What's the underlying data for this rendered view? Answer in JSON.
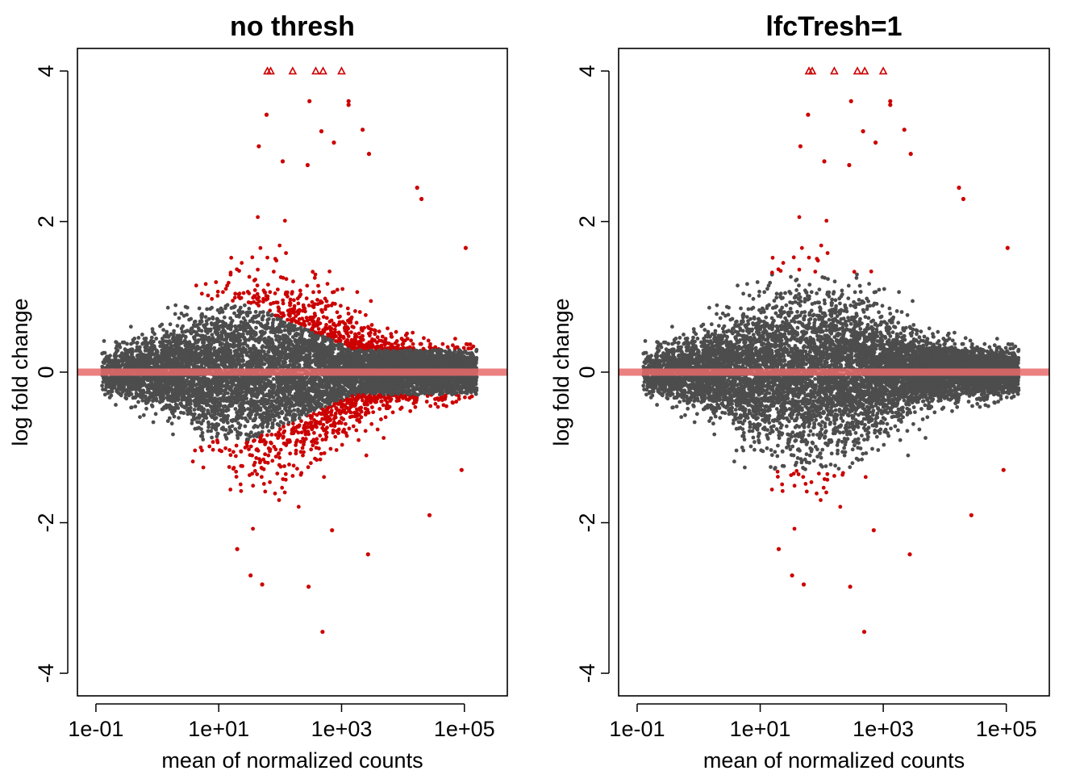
{
  "chart_data": [
    {
      "type": "scatter",
      "title": "no thresh",
      "xlabel": "mean of normalized counts",
      "ylabel": "log fold change",
      "x_scale": "log10",
      "xlim": [
        0.05,
        500000
      ],
      "ylim": [
        -4.3,
        4.3
      ],
      "x_ticks": [
        "1e-01",
        "1e+01",
        "1e+03",
        "1e+05"
      ],
      "y_ticks": [
        "-4",
        "-2",
        "0",
        "2",
        "4"
      ],
      "grid": false,
      "legend": "none",
      "colors": {
        "significant": "#cc0000",
        "not_significant": "#4d4d4d",
        "zero_line": "#e86a6a"
      },
      "series": [
        {
          "values_shape": "cloud of gray points, spread narrowing at low and high counts"
        },
        {
          "values_shape": "red points beyond about |0.9| log fold change at low counts, about |0.3| at high counts"
        }
      ],
      "clipped_points": [
        {
          "x": 62,
          "y": 4
        },
        {
          "x": 70,
          "y": 4
        },
        {
          "x": 160,
          "y": 4
        },
        {
          "x": 380,
          "y": 4
        },
        {
          "x": 500,
          "y": 4
        },
        {
          "x": 1000,
          "y": 4
        }
      ],
      "highlighted_points": [
        {
          "x": 1300,
          "y": 3.6
        },
        {
          "x": 1300,
          "y": 3.55
        },
        {
          "x": 300,
          "y": 3.6
        },
        {
          "x": 60,
          "y": 3.42
        },
        {
          "x": 470,
          "y": 3.2
        },
        {
          "x": 2200,
          "y": 3.22
        },
        {
          "x": 45,
          "y": 3.0
        },
        {
          "x": 750,
          "y": 3.05
        },
        {
          "x": 2800,
          "y": 2.9
        },
        {
          "x": 110,
          "y": 2.8
        },
        {
          "x": 280,
          "y": 2.75
        },
        {
          "x": 17000,
          "y": 2.45
        },
        {
          "x": 20000,
          "y": 2.3
        },
        {
          "x": 105000,
          "y": 1.65
        },
        {
          "x": 90000,
          "y": -1.3
        },
        {
          "x": 27000,
          "y": -1.9
        },
        {
          "x": 2700,
          "y": -2.42
        },
        {
          "x": 700,
          "y": -2.1
        },
        {
          "x": 490,
          "y": -3.45
        },
        {
          "x": 290,
          "y": -2.85
        },
        {
          "x": 51,
          "y": -2.82
        },
        {
          "x": 33,
          "y": -2.7
        },
        {
          "x": 20,
          "y": -2.35
        }
      ]
    },
    {
      "type": "scatter",
      "title": "lfcTresh=1",
      "xlabel": "mean of normalized counts",
      "ylabel": "log fold change",
      "x_scale": "log10",
      "xlim": [
        0.05,
        500000
      ],
      "ylim": [
        -4.3,
        4.3
      ],
      "x_ticks": [
        "1e-01",
        "1e+01",
        "1e+03",
        "1e+05"
      ],
      "y_ticks": [
        "-4",
        "-2",
        "0",
        "2",
        "4"
      ],
      "grid": false,
      "legend": "none",
      "colors": {
        "significant": "#cc0000",
        "not_significant": "#4d4d4d",
        "zero_line": "#e86a6a"
      },
      "series": [
        {
          "values_shape": "cloud of gray points, spread narrowing at low and high counts"
        },
        {
          "values_shape": "red points only beyond about |1.3| log fold change"
        }
      ],
      "clipped_points": [
        {
          "x": 62,
          "y": 4
        },
        {
          "x": 70,
          "y": 4
        },
        {
          "x": 160,
          "y": 4
        },
        {
          "x": 380,
          "y": 4
        },
        {
          "x": 500,
          "y": 4
        },
        {
          "x": 1000,
          "y": 4
        }
      ],
      "highlighted_points": [
        {
          "x": 1300,
          "y": 3.6
        },
        {
          "x": 1300,
          "y": 3.55
        },
        {
          "x": 300,
          "y": 3.6
        },
        {
          "x": 60,
          "y": 3.42
        },
        {
          "x": 470,
          "y": 3.2
        },
        {
          "x": 2200,
          "y": 3.22
        },
        {
          "x": 45,
          "y": 3.0
        },
        {
          "x": 750,
          "y": 3.05
        },
        {
          "x": 2800,
          "y": 2.9
        },
        {
          "x": 110,
          "y": 2.8
        },
        {
          "x": 280,
          "y": 2.75
        },
        {
          "x": 17000,
          "y": 2.45
        },
        {
          "x": 20000,
          "y": 2.3
        },
        {
          "x": 105000,
          "y": 1.65
        },
        {
          "x": 90000,
          "y": -1.3
        },
        {
          "x": 27000,
          "y": -1.9
        },
        {
          "x": 2700,
          "y": -2.42
        },
        {
          "x": 700,
          "y": -2.1
        },
        {
          "x": 490,
          "y": -3.45
        },
        {
          "x": 290,
          "y": -2.85
        },
        {
          "x": 51,
          "y": -2.82
        },
        {
          "x": 33,
          "y": -2.7
        },
        {
          "x": 20,
          "y": -2.35
        }
      ]
    }
  ]
}
